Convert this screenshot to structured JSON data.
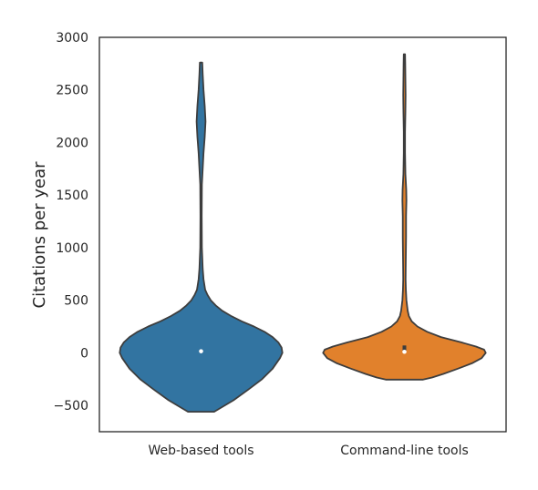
{
  "chart_data": {
    "type": "violin",
    "title": "",
    "xlabel": "",
    "ylabel": "Citations per year",
    "ylim": [
      -750,
      3000
    ],
    "yticks": [
      -500,
      0,
      500,
      1000,
      1500,
      2000,
      2500,
      3000
    ],
    "ytick_labels": [
      "−500",
      "0",
      "500",
      "1000",
      "1500",
      "2000",
      "2500",
      "3000"
    ],
    "grid": false,
    "categories": [
      "Web-based tools",
      "Command-line tools"
    ],
    "series": [
      {
        "category": "Web-based tools",
        "color": "#3274a1",
        "median": 15,
        "q1": 5,
        "q3": 30,
        "min": -560,
        "max": 2760,
        "density": [
          [
            -560,
            0.16
          ],
          [
            -520,
            0.25
          ],
          [
            -450,
            0.4
          ],
          [
            -350,
            0.58
          ],
          [
            -250,
            0.75
          ],
          [
            -150,
            0.88
          ],
          [
            -50,
            0.97
          ],
          [
            0,
            1.0
          ],
          [
            50,
            0.99
          ],
          [
            100,
            0.95
          ],
          [
            150,
            0.88
          ],
          [
            200,
            0.78
          ],
          [
            250,
            0.65
          ],
          [
            300,
            0.5
          ],
          [
            350,
            0.37
          ],
          [
            400,
            0.26
          ],
          [
            450,
            0.18
          ],
          [
            500,
            0.12
          ],
          [
            550,
            0.08
          ],
          [
            600,
            0.05
          ],
          [
            700,
            0.03
          ],
          [
            800,
            0.02
          ],
          [
            1000,
            0.01
          ],
          [
            1300,
            0.008
          ],
          [
            1600,
            0.01
          ],
          [
            1900,
            0.03
          ],
          [
            2050,
            0.045
          ],
          [
            2200,
            0.055
          ],
          [
            2350,
            0.045
          ],
          [
            2500,
            0.03
          ],
          [
            2650,
            0.02
          ],
          [
            2760,
            0.015
          ]
        ]
      },
      {
        "category": "Command-line tools",
        "color": "#e1812c",
        "median": 10,
        "q1": 5,
        "q3": 70,
        "min": -255,
        "max": 2840,
        "density": [
          [
            -255,
            0.23
          ],
          [
            -235,
            0.34
          ],
          [
            -200,
            0.48
          ],
          [
            -150,
            0.66
          ],
          [
            -100,
            0.83
          ],
          [
            -50,
            0.95
          ],
          [
            0,
            1.0
          ],
          [
            30,
            0.98
          ],
          [
            60,
            0.88
          ],
          [
            100,
            0.7
          ],
          [
            150,
            0.45
          ],
          [
            200,
            0.28
          ],
          [
            250,
            0.16
          ],
          [
            300,
            0.09
          ],
          [
            350,
            0.055
          ],
          [
            400,
            0.04
          ],
          [
            500,
            0.025
          ],
          [
            600,
            0.018
          ],
          [
            700,
            0.015
          ],
          [
            800,
            0.016
          ],
          [
            950,
            0.018
          ],
          [
            1100,
            0.02
          ],
          [
            1300,
            0.02
          ],
          [
            1450,
            0.025
          ],
          [
            1550,
            0.022
          ],
          [
            1700,
            0.012
          ],
          [
            1900,
            0.008
          ],
          [
            2100,
            0.008
          ],
          [
            2300,
            0.012
          ],
          [
            2450,
            0.015
          ],
          [
            2600,
            0.012
          ],
          [
            2750,
            0.01
          ],
          [
            2840,
            0.008
          ]
        ]
      }
    ]
  }
}
